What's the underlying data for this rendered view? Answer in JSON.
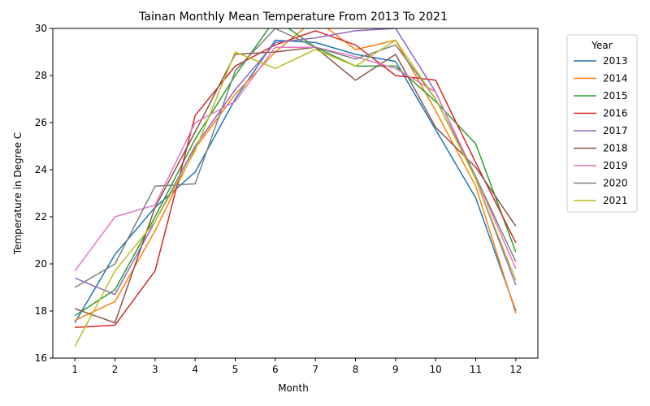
{
  "chart_data": {
    "type": "line",
    "title": "Tainan Monthly Mean Temperature From 2013 To 2021",
    "xlabel": "Month",
    "ylabel": "Temperature in Degree C",
    "x": [
      1,
      2,
      3,
      4,
      5,
      6,
      7,
      8,
      9,
      10,
      11,
      12
    ],
    "xticks": [
      "1",
      "2",
      "3",
      "4",
      "5",
      "6",
      "7",
      "8",
      "9",
      "10",
      "11",
      "12"
    ],
    "ylim": [
      16,
      30
    ],
    "yticks": [
      "16",
      "18",
      "20",
      "22",
      "24",
      "26",
      "28",
      "30"
    ],
    "grid": false,
    "legend": {
      "title": "Year",
      "placement": "outside-right"
    },
    "series": [
      {
        "name": "2013",
        "color": "#1f77b4",
        "values": [
          17.5,
          20.4,
          22.4,
          23.9,
          27.0,
          29.5,
          29.4,
          28.9,
          28.6,
          25.7,
          22.8,
          18.0
        ]
      },
      {
        "name": "2014",
        "color": "#ff7f0e",
        "values": [
          17.6,
          18.4,
          21.4,
          24.9,
          27.2,
          29.0,
          30.4,
          29.1,
          29.5,
          26.5,
          23.3,
          17.9
        ]
      },
      {
        "name": "2015",
        "color": "#2ca02c",
        "values": [
          17.8,
          18.9,
          22.0,
          25.3,
          28.0,
          30.4,
          29.2,
          28.4,
          28.4,
          26.9,
          25.1,
          20.5
        ]
      },
      {
        "name": "2016",
        "color": "#d62728",
        "values": [
          17.3,
          17.4,
          19.7,
          26.3,
          28.4,
          29.3,
          29.9,
          29.3,
          28.0,
          27.8,
          24.3,
          20.9
        ]
      },
      {
        "name": "2017",
        "color": "#9467bd",
        "values": [
          19.4,
          18.7,
          21.8,
          25.0,
          27.4,
          29.4,
          29.6,
          29.9,
          30.0,
          27.3,
          23.6,
          19.1
        ]
      },
      {
        "name": "2018",
        "color": "#8c564b",
        "values": [
          18.1,
          17.5,
          22.4,
          25.6,
          28.9,
          29.0,
          29.2,
          27.8,
          28.9,
          25.8,
          24.1,
          21.6
        ]
      },
      {
        "name": "2019",
        "color": "#e377c2",
        "values": [
          19.7,
          22.0,
          22.5,
          26.0,
          26.9,
          29.2,
          29.2,
          28.8,
          28.3,
          27.3,
          23.7,
          19.8
        ]
      },
      {
        "name": "2020",
        "color": "#7f7f7f",
        "values": [
          19.0,
          20.0,
          23.3,
          23.4,
          28.2,
          30.0,
          29.2,
          28.7,
          29.3,
          27.0,
          23.7,
          20.1
        ]
      },
      {
        "name": "2021",
        "color": "#bcbd22",
        "values": [
          16.5,
          19.7,
          21.8,
          24.8,
          29.0,
          28.3,
          29.1,
          28.4,
          29.5,
          27.0,
          23.6,
          19.3
        ]
      }
    ]
  }
}
